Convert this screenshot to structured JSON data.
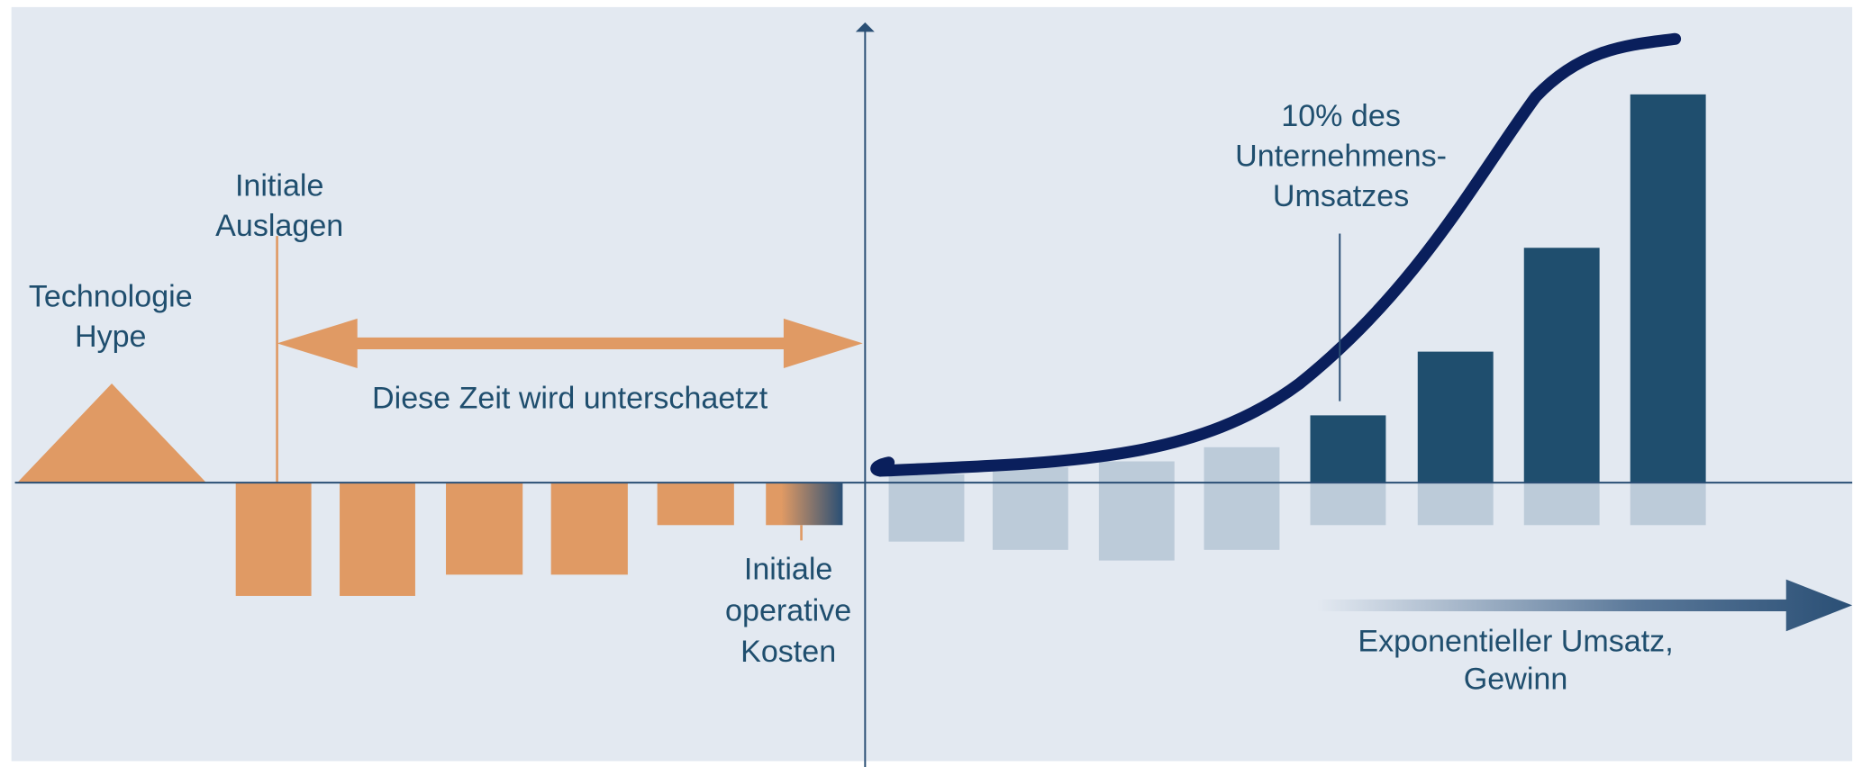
{
  "labels": [
    {
      "lines": [
        "Technologie",
        "Hype"
      ]
    },
    {
      "lines": [
        "Initiale",
        "Auslagen"
      ]
    },
    {
      "lines": [
        "Diese Zeit wird unterschaetzt"
      ]
    },
    {
      "lines": [
        "Initiale",
        "operative",
        "Kosten"
      ]
    },
    {
      "lines": [
        "10% des",
        "Unternehmens-",
        "Umsatzes"
      ]
    },
    {
      "lines": [
        "Exponentieller Umsatz,",
        "Gewinn"
      ]
    }
  ]
}
